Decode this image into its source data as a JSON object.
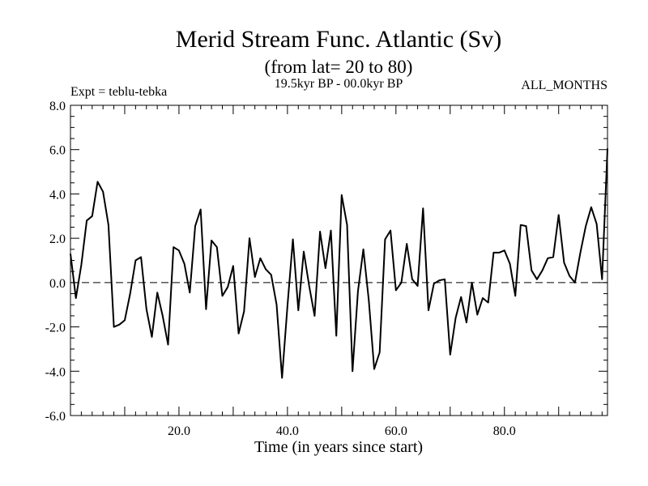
{
  "chart_data": {
    "type": "line",
    "title": "Merid Stream Func. Atlantic (Sv)",
    "subtitle": "(from lat= 20 to 80)",
    "period": "19.5kyr BP - 00.0kyr BP",
    "expt": "Expt = teblu-tebka",
    "months": "ALL_MONTHS",
    "xlabel": "Time (in years since start)",
    "ylabel": "",
    "xlim": [
      0,
      99
    ],
    "ylim": [
      -6.0,
      8.0
    ],
    "x_ticks": [
      20,
      40,
      60,
      80
    ],
    "x_tick_labels": [
      "20.0",
      "40.0",
      "60.0",
      "80.0"
    ],
    "y_ticks": [
      -6,
      -4,
      -2,
      0,
      2,
      4,
      6,
      8
    ],
    "y_tick_labels": [
      "-6.0",
      "-4.0",
      "-2.0",
      "0.0",
      "2.0",
      "4.0",
      "6.0",
      "8.0"
    ],
    "zero_line": "dashed",
    "grid": false,
    "colors": {
      "line": "#000000",
      "background": "#ffffff"
    },
    "series": [
      {
        "x": [
          0,
          1,
          2,
          3,
          4,
          5,
          6,
          7,
          8,
          9,
          10,
          11,
          12,
          13,
          14,
          15,
          16,
          17,
          18,
          19,
          20,
          21,
          22,
          23,
          24,
          25,
          26,
          27,
          28,
          29,
          30,
          31,
          32,
          33,
          34,
          35,
          36,
          37,
          38,
          39,
          40,
          41,
          42,
          43,
          44,
          45,
          46,
          47,
          48,
          49,
          50,
          51,
          52,
          53,
          54,
          55,
          56,
          57,
          58,
          59,
          60,
          61,
          62,
          63,
          64,
          65,
          66,
          67,
          68,
          69,
          70,
          71,
          72,
          73,
          74,
          75,
          76,
          77,
          78,
          79,
          80,
          81,
          82,
          83,
          84,
          85,
          86,
          87,
          88,
          89,
          90,
          91,
          92,
          93,
          94,
          95,
          96,
          97,
          98,
          99
        ],
        "values": [
          1.3,
          -0.7,
          0.8,
          2.8,
          3.0,
          4.55,
          4.1,
          2.6,
          -2.0,
          -1.9,
          -1.7,
          -0.5,
          1.0,
          1.15,
          -1.2,
          -2.45,
          -0.45,
          -1.5,
          -2.8,
          1.6,
          1.45,
          0.85,
          -0.45,
          2.55,
          3.3,
          -1.2,
          1.9,
          1.6,
          -0.6,
          -0.2,
          0.75,
          -2.3,
          -1.3,
          2.0,
          0.25,
          1.1,
          0.6,
          0.35,
          -1.0,
          -4.3,
          -1.05,
          1.95,
          -1.25,
          1.4,
          -0.15,
          -1.5,
          2.3,
          0.65,
          2.35,
          -2.4,
          3.95,
          2.6,
          -4.0,
          -0.4,
          1.5,
          -0.8,
          -3.9,
          -3.15,
          1.95,
          2.35,
          -0.35,
          0.0,
          1.75,
          0.15,
          -0.15,
          3.35,
          -1.25,
          -0.05,
          0.1,
          0.15,
          -3.25,
          -1.6,
          -0.65,
          -1.8,
          0.0,
          -1.45,
          -0.7,
          -0.9,
          1.35,
          1.35,
          1.45,
          0.85,
          -0.6,
          2.6,
          2.55,
          0.55,
          0.15,
          0.55,
          1.1,
          1.15,
          3.05,
          0.9,
          0.3,
          0.0,
          1.35,
          2.55,
          3.4,
          2.65,
          0.15,
          6.05
        ]
      }
    ]
  }
}
